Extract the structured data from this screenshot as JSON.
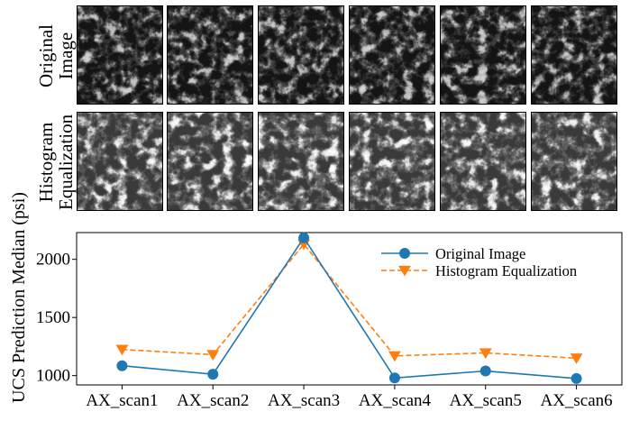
{
  "row_labels": {
    "original": [
      "Original",
      "Image"
    ],
    "equalized": [
      "Histogram",
      "Equalization"
    ]
  },
  "colors": {
    "original": "#1f77b4",
    "equalized": "#ff7f0e"
  },
  "chart_data": {
    "type": "line",
    "categories": [
      "AX_scan1",
      "AX_scan2",
      "AX_scan3",
      "AX_scan4",
      "AX_scan5",
      "AX_scan6"
    ],
    "ylabel": "UCS Prediction Median (psi)",
    "xlabel": "",
    "ylim": [
      920,
      2230
    ],
    "yticks": [
      1000,
      1500,
      2000
    ],
    "grid": false,
    "legend": "top-right",
    "series": [
      {
        "name": "Original Image",
        "marker": "circle",
        "line": "solid",
        "color": "#1f77b4",
        "values": [
          1085,
          1012,
          2185,
          980,
          1040,
          975
        ]
      },
      {
        "name": "Histogram Equalization",
        "marker": "triangle-down",
        "line": "dashed",
        "color": "#ff7f0e",
        "values": [
          1225,
          1180,
          2130,
          1170,
          1195,
          1150
        ]
      }
    ]
  }
}
